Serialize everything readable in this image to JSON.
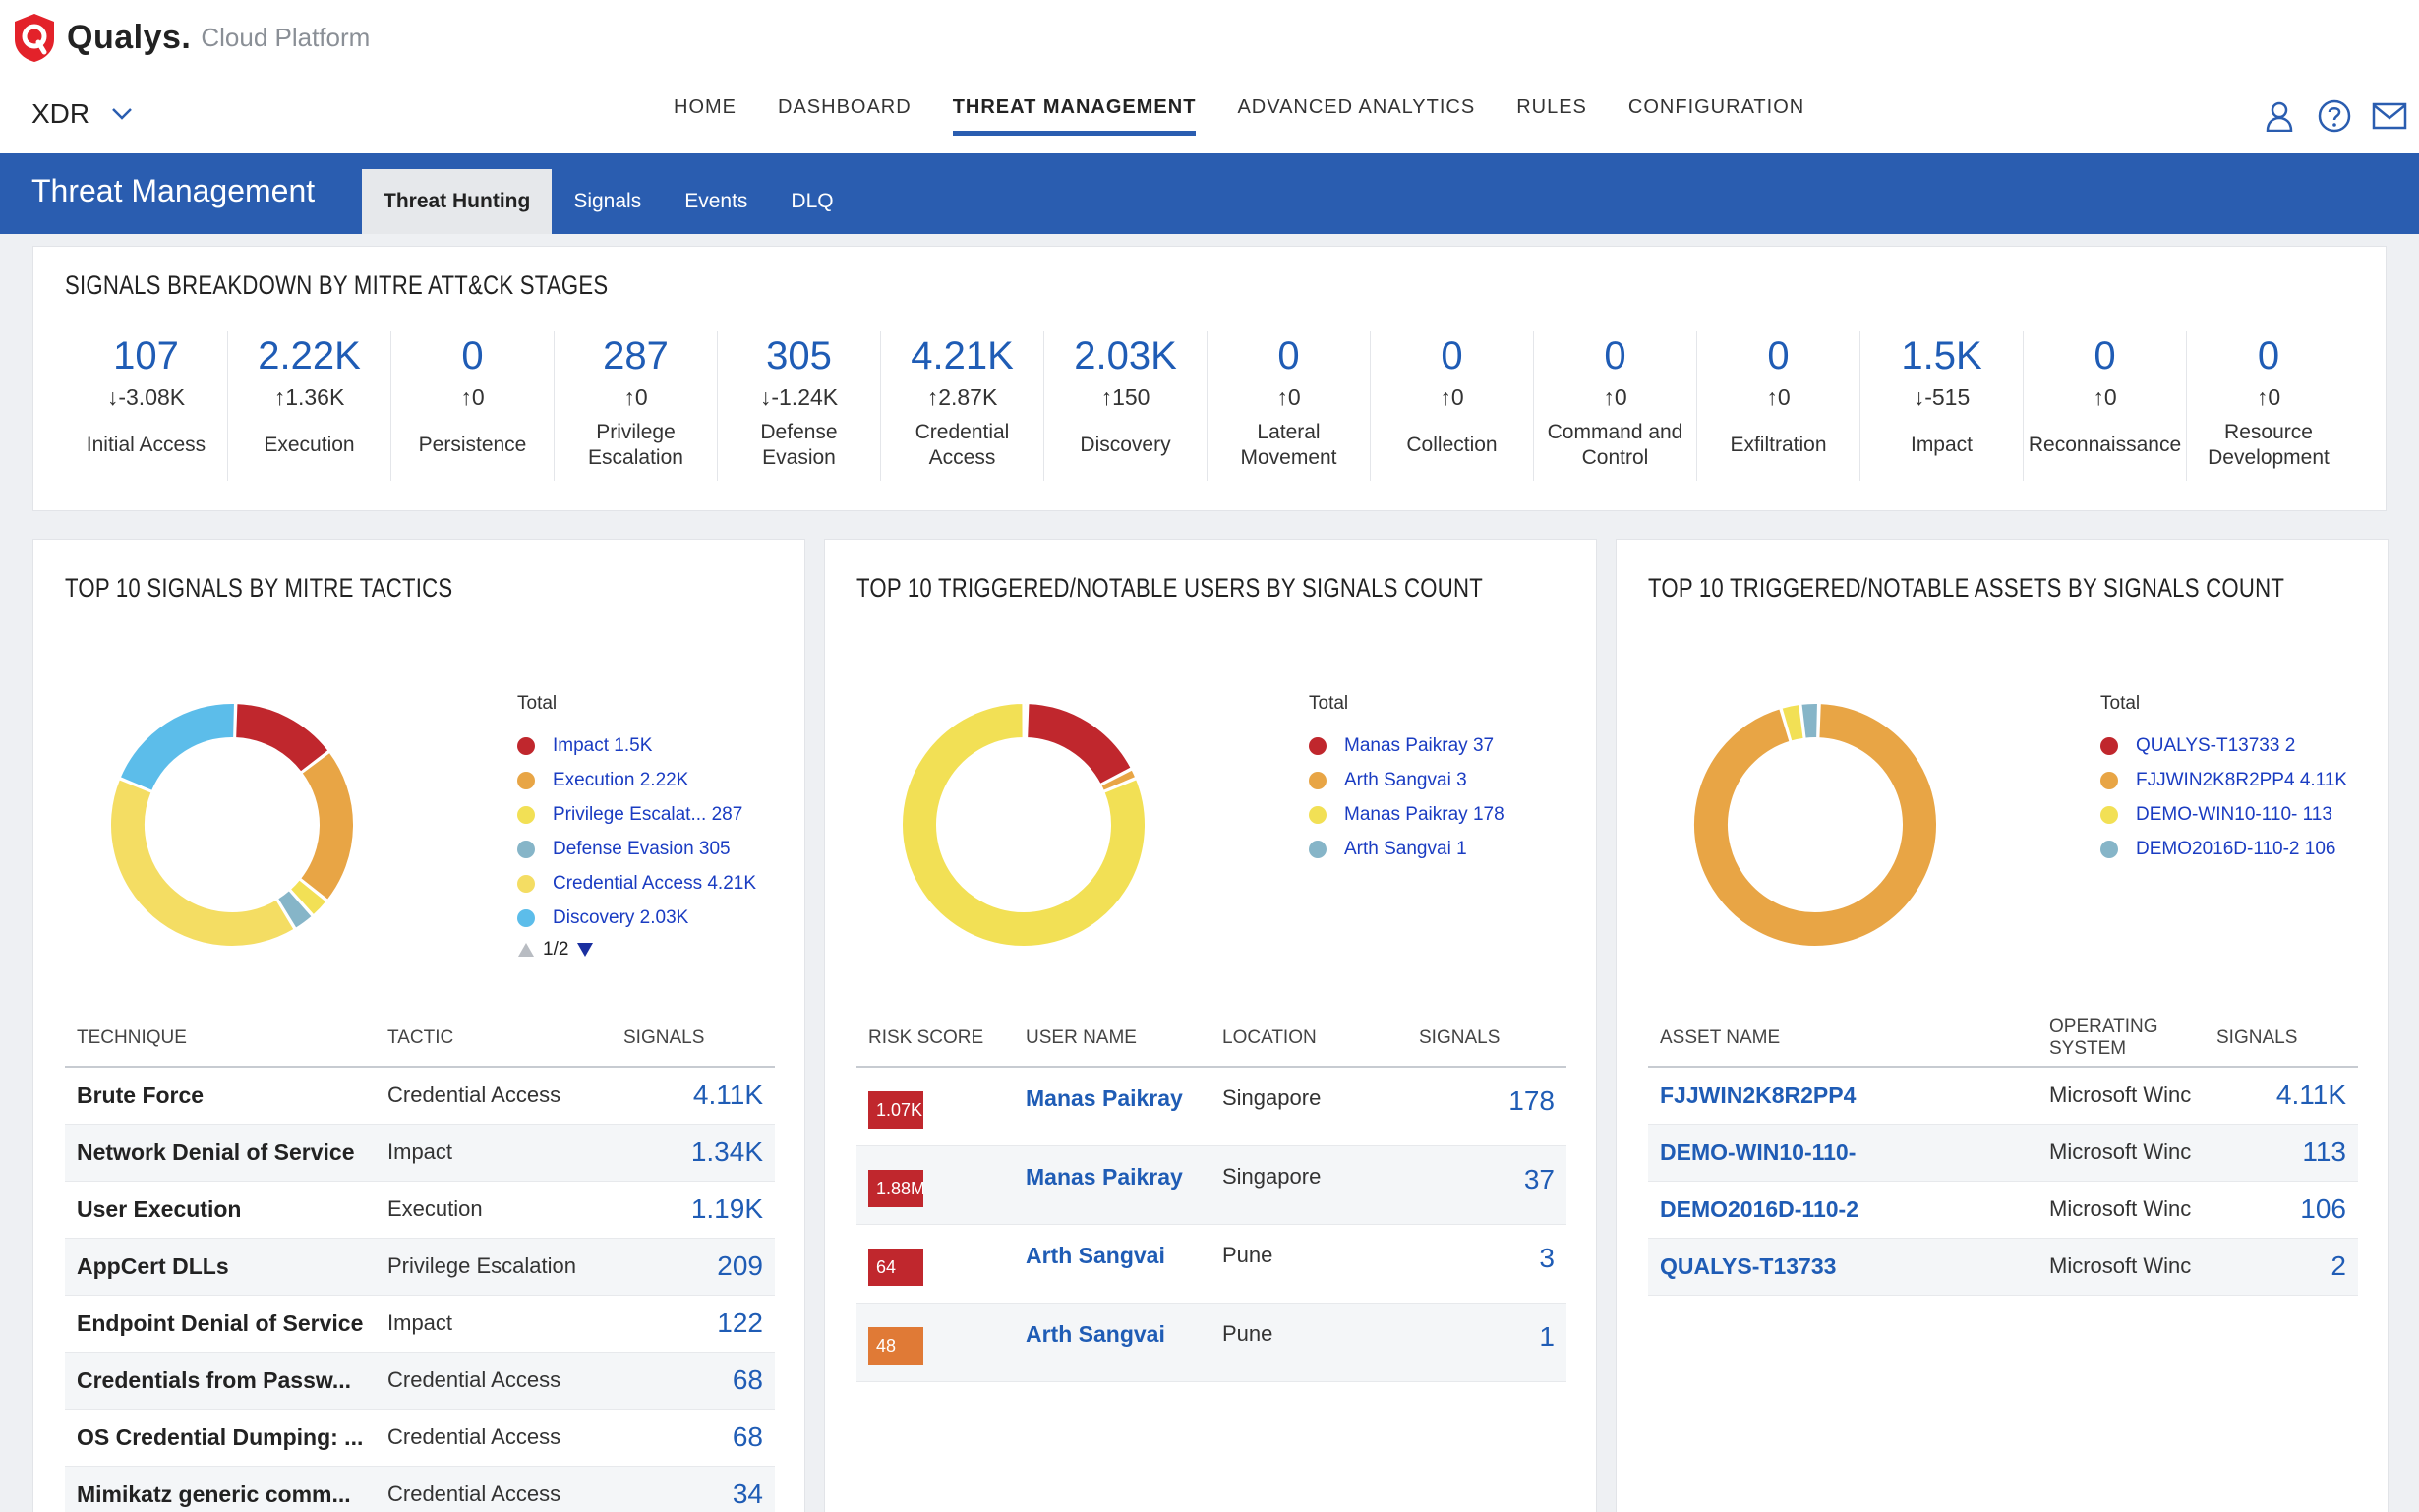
{
  "app": {
    "brand": "Qualys.",
    "brand_sub": "Cloud Platform",
    "product": "XDR"
  },
  "nav": [
    {
      "label": "HOME"
    },
    {
      "label": "DASHBOARD"
    },
    {
      "label": "THREAT MANAGEMENT",
      "active": true
    },
    {
      "label": "ADVANCED ANALYTICS"
    },
    {
      "label": "RULES"
    },
    {
      "label": "CONFIGURATION"
    }
  ],
  "band": {
    "title": "Threat Management",
    "tabs": [
      {
        "label": "Threat Hunting",
        "active": true
      },
      {
        "label": "Signals"
      },
      {
        "label": "Events"
      },
      {
        "label": "DLQ"
      }
    ]
  },
  "mitre": {
    "title": "SIGNALS BREAKDOWN BY MITRE ATT&CK STAGES",
    "stages": [
      {
        "value": "107",
        "delta": "↓-3.08K",
        "name": "Initial Access"
      },
      {
        "value": "2.22K",
        "delta": "↑1.36K",
        "name": "Execution"
      },
      {
        "value": "0",
        "delta": "↑0",
        "name": "Persistence"
      },
      {
        "value": "287",
        "delta": "↑0",
        "name": "Privilege Escalation"
      },
      {
        "value": "305",
        "delta": "↓-1.24K",
        "name": "Defense Evasion"
      },
      {
        "value": "4.21K",
        "delta": "↑2.87K",
        "name": "Credential Access"
      },
      {
        "value": "2.03K",
        "delta": "↑150",
        "name": "Discovery"
      },
      {
        "value": "0",
        "delta": "↑0",
        "name": "Lateral Movement"
      },
      {
        "value": "0",
        "delta": "↑0",
        "name": "Collection"
      },
      {
        "value": "0",
        "delta": "↑0",
        "name": "Command and Control"
      },
      {
        "value": "0",
        "delta": "↑0",
        "name": "Exfiltration"
      },
      {
        "value": "1.5K",
        "delta": "↓-515",
        "name": "Impact"
      },
      {
        "value": "0",
        "delta": "↑0",
        "name": "Reconnaissance"
      },
      {
        "value": "0",
        "delta": "↑0",
        "name": "Resource Development"
      }
    ]
  },
  "tactics": {
    "title": "TOP 10 SIGNALS BY MITRE TACTICS",
    "legend_title": "Total",
    "legend": [
      {
        "label": "Impact 1.5K",
        "color": "#c0272d"
      },
      {
        "label": "Execution 2.22K",
        "color": "#e8a545"
      },
      {
        "label": "Privilege Escalat... 287",
        "color": "#f2e055"
      },
      {
        "label": "Defense Evasion 305",
        "color": "#86b5c8"
      },
      {
        "label": "Credential Access 4.21K",
        "color": "#f4dd63"
      },
      {
        "label": "Discovery 2.03K",
        "color": "#5cbdea"
      }
    ],
    "pager": "1/2",
    "columns": [
      "TECHNIQUE",
      "TACTIC",
      "SIGNALS"
    ],
    "rows": [
      {
        "technique": "Brute Force",
        "tactic": "Credential Access",
        "signals": "4.11K"
      },
      {
        "technique": "Network Denial of Service",
        "tactic": "Impact",
        "signals": "1.34K"
      },
      {
        "technique": "User Execution",
        "tactic": "Execution",
        "signals": "1.19K"
      },
      {
        "technique": "AppCert DLLs",
        "tactic": "Privilege Escalation",
        "signals": "209"
      },
      {
        "technique": "Endpoint Denial of Service",
        "tactic": "Impact",
        "signals": "122"
      },
      {
        "technique": "Credentials from Passw...",
        "tactic": "Credential Access",
        "signals": "68"
      },
      {
        "technique": "OS Credential Dumping: ...",
        "tactic": "Credential Access",
        "signals": "68"
      },
      {
        "technique": "Mimikatz generic comm...",
        "tactic": "Credential Access",
        "signals": "34"
      }
    ]
  },
  "users": {
    "title": "TOP 10 TRIGGERED/NOTABLE USERS BY SIGNALS COUNT",
    "legend_title": "Total",
    "legend": [
      {
        "label": "Manas Paikray 37",
        "color": "#c0272d"
      },
      {
        "label": "Arth Sangvai 3",
        "color": "#e8a545"
      },
      {
        "label": "Manas Paikray 178",
        "color": "#f2e055"
      },
      {
        "label": "Arth Sangvai 1",
        "color": "#86b5c8"
      }
    ],
    "columns": [
      "RISK SCORE",
      "USER NAME",
      "LOCATION",
      "SIGNALS"
    ],
    "rows": [
      {
        "risk": "1.07K",
        "risk_color": "#c0272d",
        "user": "Manas Paikray",
        "location": "Singapore",
        "signals": "178"
      },
      {
        "risk": "1.88M",
        "risk_color": "#c0272d",
        "user": "Manas Paikray",
        "location": "Singapore",
        "signals": "37"
      },
      {
        "risk": "64",
        "risk_color": "#c0272d",
        "user": "Arth Sangvai",
        "location": "Pune",
        "signals": "3"
      },
      {
        "risk": "48",
        "risk_color": "#e07a36",
        "user": "Arth Sangvai",
        "location": "Pune",
        "signals": "1"
      }
    ]
  },
  "assets": {
    "title": "TOP 10 TRIGGERED/NOTABLE ASSETS BY SIGNALS COUNT",
    "legend_title": "Total",
    "legend": [
      {
        "label": "QUALYS-T13733 2",
        "color": "#c0272d"
      },
      {
        "label": "FJJWIN2K8R2PP4 4.11K",
        "color": "#e8a545"
      },
      {
        "label": "DEMO-WIN10-110- 113",
        "color": "#f2e055"
      },
      {
        "label": "DEMO2016D-110-2 106",
        "color": "#86b5c8"
      }
    ],
    "columns": [
      "ASSET NAME",
      "OPERATING SYSTEM",
      "SIGNALS"
    ],
    "rows": [
      {
        "asset": "FJJWIN2K8R2PP4",
        "os": "Microsoft Winc",
        "signals": "4.11K"
      },
      {
        "asset": "DEMO-WIN10-110-",
        "os": "Microsoft Winc",
        "signals": "113"
      },
      {
        "asset": "DEMO2016D-110-2",
        "os": "Microsoft Winc",
        "signals": "106"
      },
      {
        "asset": "QUALYS-T13733",
        "os": "Microsoft Winc",
        "signals": "2"
      }
    ]
  },
  "chart_data": [
    {
      "type": "pie",
      "title": "TOP 10 SIGNALS BY MITRE TACTICS",
      "categories": [
        "Impact",
        "Execution",
        "Privilege Escalat...",
        "Defense Evasion",
        "Credential Access",
        "Discovery"
      ],
      "values": [
        1500,
        2220,
        287,
        305,
        4210,
        2030
      ]
    },
    {
      "type": "pie",
      "title": "TOP 10 TRIGGERED/NOTABLE USERS BY SIGNALS COUNT",
      "categories": [
        "Manas Paikray",
        "Arth Sangvai",
        "Manas Paikray",
        "Arth Sangvai"
      ],
      "values": [
        37,
        3,
        178,
        1
      ]
    },
    {
      "type": "pie",
      "title": "TOP 10 TRIGGERED/NOTABLE ASSETS BY SIGNALS COUNT",
      "categories": [
        "QUALYS-T13733",
        "FJJWIN2K8R2PP4",
        "DEMO-WIN10-110-",
        "DEMO2016D-110-2"
      ],
      "values": [
        2,
        4110,
        113,
        106
      ]
    }
  ]
}
